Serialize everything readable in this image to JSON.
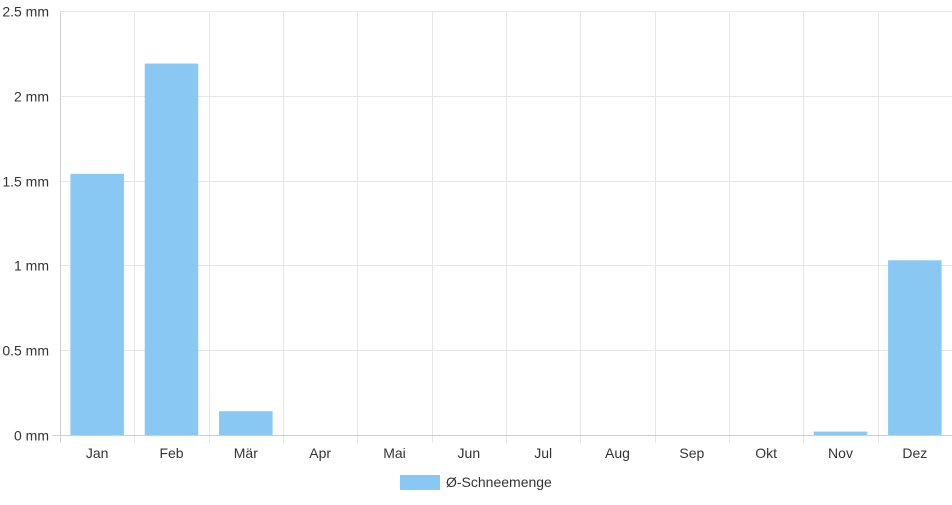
{
  "chart_data": {
    "type": "bar",
    "categories": [
      "Jan",
      "Feb",
      "Mär",
      "Apr",
      "Mai",
      "Jun",
      "Jul",
      "Aug",
      "Sep",
      "Okt",
      "Nov",
      "Dez"
    ],
    "series": [
      {
        "name": "Ø-Schneemenge",
        "values": [
          1.54,
          2.19,
          0.14,
          0,
          0,
          0,
          0,
          0,
          0,
          0,
          0.02,
          1.03
        ],
        "color": "#88c8f2"
      }
    ],
    "y_ticks": [
      "0 mm",
      "0.5 mm",
      "1 mm",
      "1.5 mm",
      "2 mm",
      "2.5 mm"
    ],
    "y_tick_values": [
      0,
      0.5,
      1,
      1.5,
      2,
      2.5
    ],
    "ylim": [
      0,
      2.5
    ],
    "grid": true,
    "legend_position": "bottom",
    "colors": {
      "grid": "#e6e6e6",
      "axis": "#cfcfcf",
      "text": "#333333"
    }
  }
}
